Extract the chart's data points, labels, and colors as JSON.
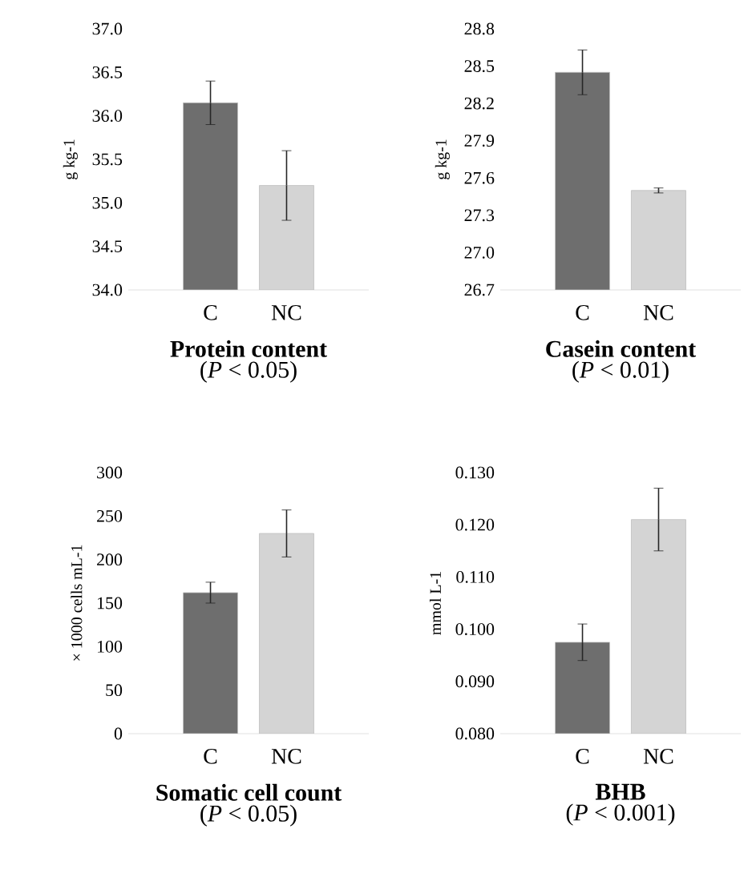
{
  "chart_data": [
    {
      "type": "bar",
      "title": "Protein content",
      "subtitle": "(*P* < 0.05)",
      "ylabel": "g kg-1",
      "categories": [
        "C",
        "NC"
      ],
      "values": [
        36.15,
        35.2
      ],
      "errors": [
        0.25,
        0.4
      ],
      "colors": [
        "#6e6e6e",
        "#d4d4d4"
      ],
      "ylim": [
        34.0,
        37.0
      ],
      "yticks": [
        {
          "value": 34.0,
          "label": "34.0"
        },
        {
          "value": 34.5,
          "label": "34.5"
        },
        {
          "value": 35.0,
          "label": "35.0"
        },
        {
          "value": 35.5,
          "label": "35.5"
        },
        {
          "value": 36.0,
          "label": "36.0"
        },
        {
          "value": 36.5,
          "label": "36.5"
        },
        {
          "value": 37.0,
          "label": "37.0"
        }
      ]
    },
    {
      "type": "bar",
      "title": "Casein content",
      "subtitle": "(*P* < 0.01)",
      "ylabel": "g kg-1",
      "categories": [
        "C",
        "NC"
      ],
      "values": [
        28.45,
        27.5
      ],
      "errors": [
        0.18,
        0.02
      ],
      "colors": [
        "#6e6e6e",
        "#d4d4d4"
      ],
      "ylim": [
        26.7,
        28.8
      ],
      "yticks": [
        {
          "value": 26.7,
          "label": "26.7"
        },
        {
          "value": 27.0,
          "label": "27.0"
        },
        {
          "value": 27.3,
          "label": "27.3"
        },
        {
          "value": 27.6,
          "label": "27.6"
        },
        {
          "value": 27.9,
          "label": "27.9"
        },
        {
          "value": 28.2,
          "label": "28.2"
        },
        {
          "value": 28.5,
          "label": "28.5"
        },
        {
          "value": 28.8,
          "label": "28.8"
        }
      ]
    },
    {
      "type": "bar",
      "title": "Somatic cell count",
      "subtitle": "(*P* < 0.05)",
      "ylabel": "× 1000 cells mL-1",
      "categories": [
        "C",
        "NC"
      ],
      "values": [
        162,
        230
      ],
      "errors": [
        12,
        27
      ],
      "colors": [
        "#6e6e6e",
        "#d4d4d4"
      ],
      "ylim": [
        0,
        300
      ],
      "yticks": [
        0,
        50,
        100,
        150,
        200,
        250,
        300
      ]
    },
    {
      "type": "bar",
      "title": "BHB",
      "subtitle": "(*P* < 0.001)",
      "ylabel": "mmol L-1",
      "categories": [
        "C",
        "NC"
      ],
      "values": [
        0.0975,
        0.121
      ],
      "errors": [
        0.0035,
        0.006
      ],
      "colors": [
        "#6e6e6e",
        "#d4d4d4"
      ],
      "ylim": [
        0.08,
        0.13
      ],
      "yticks": [
        {
          "value": 0.08,
          "label": "0.080"
        },
        {
          "value": 0.09,
          "label": "0.090"
        },
        {
          "value": 0.1,
          "label": "0.100"
        },
        {
          "value": 0.11,
          "label": "0.110"
        },
        {
          "value": 0.12,
          "label": "0.120"
        },
        {
          "value": 0.13,
          "label": "0.130"
        }
      ]
    }
  ]
}
